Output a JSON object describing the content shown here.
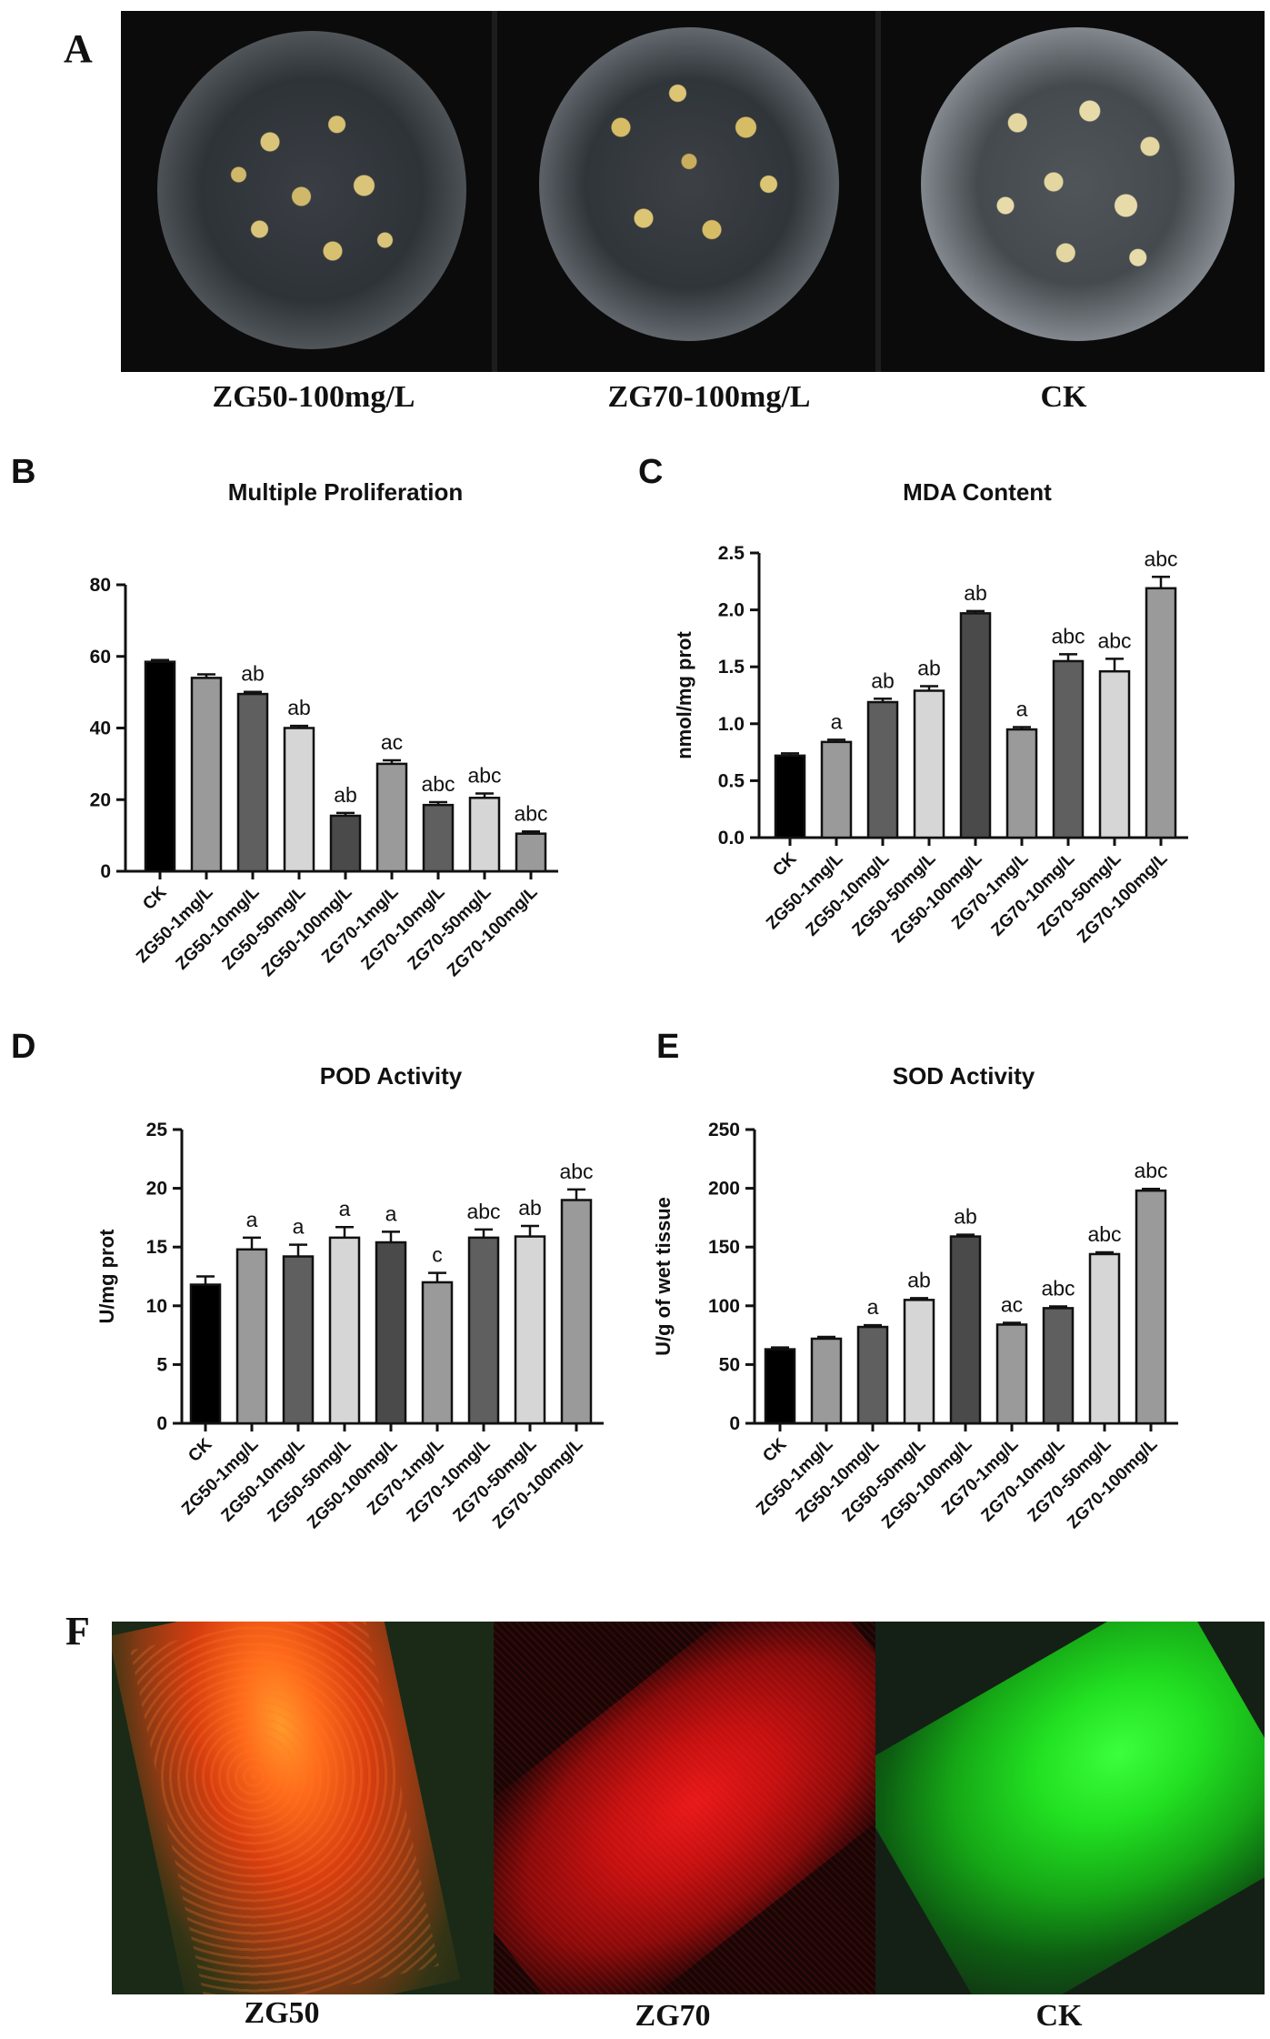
{
  "panel_a": {
    "letter": "A",
    "captions": [
      "ZG50-100mg/L",
      "ZG70-100mg/L",
      "CK"
    ]
  },
  "panel_f": {
    "letter": "F",
    "captions": [
      "ZG50",
      "ZG70",
      "CK"
    ]
  },
  "chart_data": [
    {
      "panel": "B",
      "type": "bar",
      "title": "Multiple Proliferation",
      "ylabel": "",
      "ylim": [
        0,
        80
      ],
      "yticks": [
        0,
        20,
        40,
        60,
        80
      ],
      "categories": [
        "CK",
        "ZG50-1mg/L",
        "ZG50-10mg/L",
        "ZG50-50mg/L",
        "ZG50-100mg/L",
        "ZG70-1mg/L",
        "ZG70-10mg/L",
        "ZG70-50mg/L",
        "ZG70-100mg/L"
      ],
      "values": [
        58.5,
        54,
        49.5,
        40,
        15.5,
        30,
        18.5,
        20.5,
        10.5
      ],
      "errors": [
        0.5,
        1.0,
        0.6,
        0.6,
        0.8,
        1.0,
        0.8,
        1.2,
        0.6
      ],
      "labels": [
        "",
        "",
        "ab",
        "ab",
        "ab",
        "ac",
        "abc",
        "abc",
        "abc"
      ],
      "colors": [
        "#000000",
        "#9a9a9a",
        "#5f5f5f",
        "#d6d6d6",
        "#4a4a4a",
        "#9a9a9a",
        "#5f5f5f",
        "#d6d6d6",
        "#9a9a9a"
      ]
    },
    {
      "panel": "C",
      "type": "bar",
      "title": "MDA Content",
      "ylabel": "nmol/mg prot",
      "ylim": [
        0,
        2.5
      ],
      "yticks": [
        "0.0",
        "0.5",
        "1.0",
        "1.5",
        "2.0",
        "2.5"
      ],
      "categories": [
        "CK",
        "ZG50-1mg/L",
        "ZG50-10mg/L",
        "ZG50-50mg/L",
        "ZG50-100mg/L",
        "ZG70-1mg/L",
        "ZG70-10mg/L",
        "ZG70-50mg/L",
        "ZG70-100mg/L"
      ],
      "values": [
        0.72,
        0.84,
        1.19,
        1.29,
        1.97,
        0.95,
        1.55,
        1.46,
        2.19
      ],
      "errors": [
        0.02,
        0.02,
        0.03,
        0.04,
        0.02,
        0.02,
        0.06,
        0.11,
        0.1
      ],
      "labels": [
        "",
        "a",
        "ab",
        "ab",
        "ab",
        "a",
        "abc",
        "abc",
        "abc"
      ],
      "colors": [
        "#000000",
        "#9a9a9a",
        "#5f5f5f",
        "#d6d6d6",
        "#4a4a4a",
        "#9a9a9a",
        "#5f5f5f",
        "#d6d6d6",
        "#9a9a9a"
      ]
    },
    {
      "panel": "D",
      "type": "bar",
      "title": "POD Activity",
      "ylabel": "U/mg prot",
      "ylim": [
        0,
        25
      ],
      "yticks": [
        0,
        5,
        10,
        15,
        20,
        25
      ],
      "categories": [
        "CK",
        "ZG50-1mg/L",
        "ZG50-10mg/L",
        "ZG50-50mg/L",
        "ZG50-100mg/L",
        "ZG70-1mg/L",
        "ZG70-10mg/L",
        "ZG70-50mg/L",
        "ZG70-100mg/L"
      ],
      "values": [
        11.8,
        14.8,
        14.2,
        15.8,
        15.4,
        12,
        15.8,
        15.9,
        19
      ],
      "errors": [
        0.7,
        1.0,
        1.0,
        0.9,
        0.9,
        0.8,
        0.7,
        0.9,
        0.9
      ],
      "labels": [
        "",
        "a",
        "a",
        "a",
        "a",
        "c",
        "abc",
        "ab",
        "abc"
      ],
      "colors": [
        "#000000",
        "#9a9a9a",
        "#5f5f5f",
        "#d6d6d6",
        "#4a4a4a",
        "#9a9a9a",
        "#5f5f5f",
        "#d6d6d6",
        "#9a9a9a"
      ]
    },
    {
      "panel": "E",
      "type": "bar",
      "title": "SOD Activity",
      "ylabel": "U/g of wet tissue",
      "ylim": [
        0,
        250
      ],
      "yticks": [
        0,
        50,
        100,
        150,
        200,
        250
      ],
      "categories": [
        "CK",
        "ZG50-1mg/L",
        "ZG50-10mg/L",
        "ZG50-50mg/L",
        "ZG50-100mg/L",
        "ZG70-1mg/L",
        "ZG70-10mg/L",
        "ZG70-50mg/L",
        "ZG70-100mg/L"
      ],
      "values": [
        63,
        72,
        82,
        105,
        159,
        84,
        98,
        144,
        198
      ],
      "errors": [
        1.5,
        1.5,
        1.5,
        1.5,
        1.5,
        1.5,
        1.5,
        1.5,
        1.5
      ],
      "labels": [
        "",
        "",
        "a",
        "ab",
        "ab",
        "ac",
        "abc",
        "abc",
        "abc"
      ],
      "colors": [
        "#000000",
        "#9a9a9a",
        "#5f5f5f",
        "#d6d6d6",
        "#4a4a4a",
        "#9a9a9a",
        "#5f5f5f",
        "#d6d6d6",
        "#9a9a9a"
      ]
    }
  ]
}
